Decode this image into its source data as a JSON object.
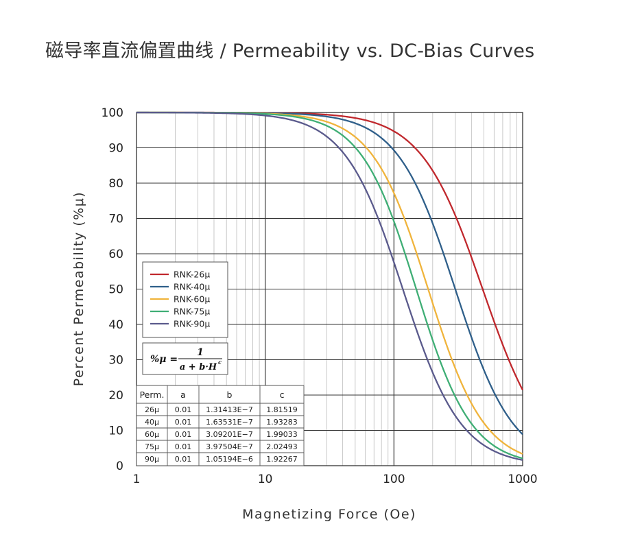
{
  "title": "磁导率直流偏置曲线 / Permeability vs. DC-Bias Curves",
  "chart_data": {
    "type": "line",
    "title": "磁导率直流偏置曲线 / Permeability vs. DC-Bias Curves",
    "xlabel": "Magnetizing Force (Oe)",
    "ylabel": "Percent Permeability (%μ)",
    "xscale": "log",
    "xlim": [
      1,
      1000
    ],
    "ylim": [
      0,
      100
    ],
    "xticks": [
      "1",
      "10",
      "100",
      "1000"
    ],
    "yticks": [
      "0",
      "10",
      "20",
      "30",
      "40",
      "50",
      "60",
      "70",
      "80",
      "90",
      "100"
    ],
    "grid": true,
    "legend_position": "left-middle",
    "formula": {
      "lhs": "%μ =",
      "numerator": "1",
      "denominator": "a + b·H",
      "exponent": "c"
    },
    "series": [
      {
        "name": "RNK-26μ",
        "color": "#c0282d",
        "a": 0.01,
        "b": 1.31413e-07,
        "c": 1.81519,
        "x": [
          1,
          10,
          30,
          50,
          100,
          200,
          300,
          500,
          1000
        ],
        "values": [
          100.0,
          99.9,
          99.1,
          98.1,
          94.1,
          82.4,
          70.0,
          50.8,
          22.0
        ]
      },
      {
        "name": "RNK-40μ",
        "color": "#2f5f8a",
        "a": 0.01,
        "b": 1.63531e-07,
        "c": 1.93283,
        "x": [
          1,
          10,
          30,
          50,
          100,
          200,
          300,
          500,
          1000
        ],
        "values": [
          100.0,
          99.9,
          98.6,
          96.3,
          89.1,
          68.6,
          50.8,
          28.3,
          8.8
        ]
      },
      {
        "name": "RNK-60μ",
        "color": "#f0b43c",
        "a": 0.01,
        "b": 3.09201e-07,
        "c": 1.99033,
        "x": [
          1,
          10,
          30,
          50,
          100,
          200,
          300,
          500,
          1000
        ],
        "values": [
          100.0,
          99.7,
          97.4,
          93.1,
          76.6,
          45.2,
          27.0,
          11.8,
          3.2
        ]
      },
      {
        "name": "RNK-75μ",
        "color": "#3fae75",
        "a": 0.01,
        "b": 3.97504e-07,
        "c": 2.02493,
        "x": [
          1,
          10,
          30,
          50,
          100,
          200,
          300,
          500,
          1000
        ],
        "values": [
          100.0,
          99.6,
          96.2,
          90.1,
          68.9,
          34.8,
          18.8,
          7.5,
          1.8
        ]
      },
      {
        "name": "RNK-90μ",
        "color": "#5a5a8c",
        "a": 0.01,
        "b": 1.05194e-06,
        "c": 1.92267,
        "x": [
          1,
          10,
          30,
          50,
          100,
          200,
          300,
          500,
          1000
        ],
        "values": [
          99.99,
          99.1,
          92.5,
          83.1,
          57.4,
          26.0,
          13.9,
          5.7,
          1.6
        ]
      }
    ],
    "table": {
      "headers": [
        "Perm.",
        "a",
        "b",
        "c"
      ],
      "rows": [
        [
          "26μ",
          "0.01",
          "1.31413E−7",
          "1.81519"
        ],
        [
          "40μ",
          "0.01",
          "1.63531E−7",
          "1.93283"
        ],
        [
          "60μ",
          "0.01",
          "3.09201E−7",
          "1.99033"
        ],
        [
          "75μ",
          "0.01",
          "3.97504E−7",
          "2.02493"
        ],
        [
          "90μ",
          "0.01",
          "1.05194E−6",
          "1.92267"
        ]
      ]
    }
  }
}
